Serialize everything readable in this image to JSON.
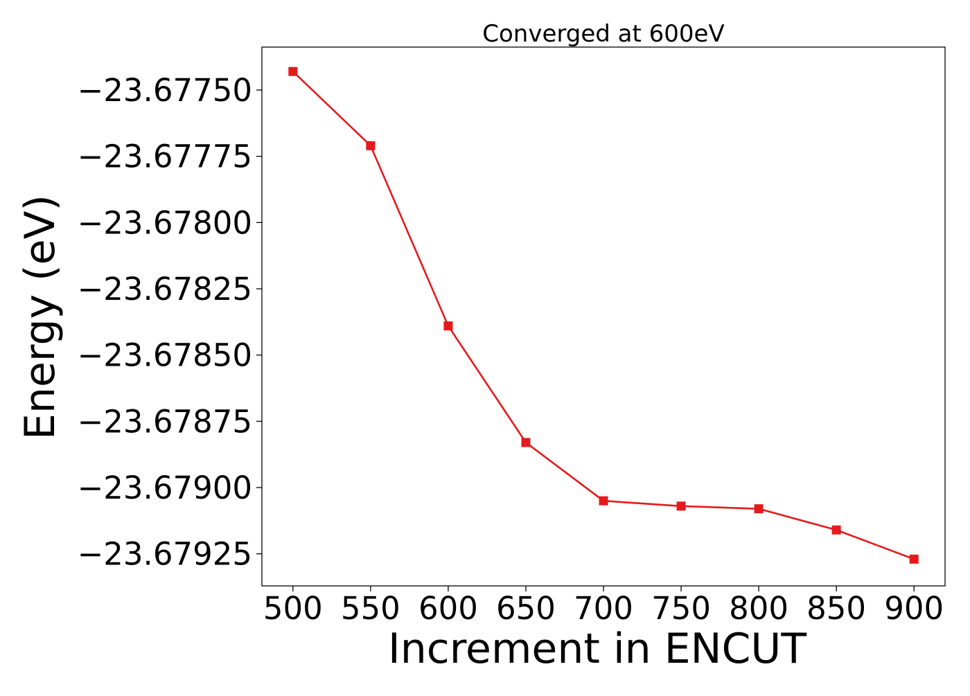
{
  "chart_data": {
    "type": "line",
    "title": "Converged at 600eV",
    "xlabel": "Increment in ENCUT",
    "ylabel": "Energy (eV)",
    "x": [
      500,
      550,
      600,
      650,
      700,
      750,
      800,
      850,
      900
    ],
    "series": [
      {
        "values": [
          -23.67743,
          -23.67771,
          -23.67839,
          -23.67883,
          -23.67905,
          -23.67907,
          -23.67908,
          -23.67916,
          -23.67927
        ],
        "color": "#e41a1c",
        "marker": "square"
      }
    ],
    "xlim": [
      480,
      920
    ],
    "ylim": [
      -23.679371,
      -23.677338
    ],
    "xticks": [
      500,
      550,
      600,
      650,
      700,
      750,
      800,
      850,
      900
    ],
    "xtick_labels": [
      "500",
      "550",
      "600",
      "650",
      "700",
      "750",
      "800",
      "850",
      "900"
    ],
    "yticks": [
      -23.6775,
      -23.67775,
      -23.678,
      -23.67825,
      -23.6785,
      -23.67875,
      -23.679,
      -23.67925
    ],
    "ytick_labels": [
      "−23.67750",
      "−23.67775",
      "−23.67800",
      "−23.67825",
      "−23.67850",
      "−23.67875",
      "−23.67900",
      "−23.67925"
    ],
    "grid": false,
    "legend": "none"
  }
}
